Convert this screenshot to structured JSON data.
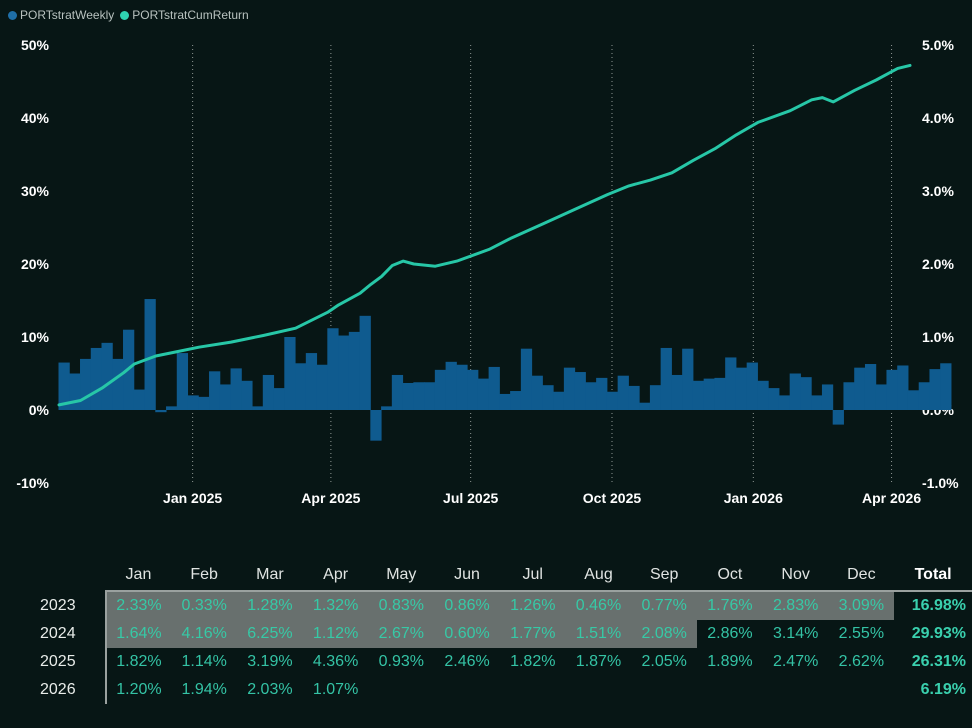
{
  "legend": {
    "weekly_label": "PORTstratWeekly",
    "cum_label": "PORTstratCumReturn"
  },
  "colors": {
    "background": "#071615",
    "weekly": "#0f5b8f",
    "cum": "#27c7a7",
    "legend_weekly_dot": "#1f6fa8",
    "legend_cum_dot": "#2fd3b1",
    "highlight": "#68706e",
    "table_text": "#34c3a5"
  },
  "chart_data": {
    "type": "bar+line",
    "x_ticks": [
      "Jan 2025",
      "Apr 2025",
      "Jul 2025",
      "Oct 2025",
      "Jan 2026",
      "Apr 2026"
    ],
    "x_tick_dates": [
      "2025-01-01",
      "2025-04-01",
      "2025-07-01",
      "2025-10-01",
      "2026-01-01",
      "2026-04-01"
    ],
    "x_range": [
      "2024-10-06",
      "2026-04-13"
    ],
    "grid": "dotted vertical at month ticks",
    "left_axis": {
      "ticks": [
        "50%",
        "40%",
        "30%",
        "20%",
        "10%",
        "0%",
        "-10%"
      ],
      "values": [
        50,
        40,
        30,
        20,
        10,
        0,
        -10
      ],
      "ylim": [
        -10,
        50
      ]
    },
    "right_axis": {
      "ticks": [
        "5.0%",
        "4.0%",
        "3.0%",
        "2.0%",
        "1.0%",
        "0.0%",
        "-1.0%"
      ],
      "values": [
        5.0,
        4.0,
        3.0,
        2.0,
        1.0,
        0.0,
        -1.0
      ],
      "ylim": [
        -1.0,
        5.0
      ]
    },
    "series": [
      {
        "name": "PORTstratWeekly",
        "type": "bar",
        "axis": "right",
        "start_date": "2024-10-06",
        "step_days": 7,
        "values": [
          0.65,
          0.5,
          0.7,
          0.85,
          0.92,
          0.7,
          1.1,
          0.28,
          1.52,
          -0.03,
          0.05,
          0.78,
          0.2,
          0.18,
          0.53,
          0.35,
          0.57,
          0.4,
          0.05,
          0.48,
          0.3,
          1.0,
          0.64,
          0.78,
          0.62,
          1.12,
          1.02,
          1.07,
          1.29,
          -0.42,
          0.05,
          0.48,
          0.37,
          0.38,
          0.38,
          0.55,
          0.66,
          0.62,
          0.55,
          0.43,
          0.59,
          0.22,
          0.26,
          0.84,
          0.47,
          0.34,
          0.25,
          0.58,
          0.52,
          0.38,
          0.44,
          0.25,
          0.47,
          0.33,
          0.1,
          0.34,
          0.85,
          0.48,
          0.84,
          0.4,
          0.43,
          0.44,
          0.72,
          0.58,
          0.65,
          0.4,
          0.3,
          0.2,
          0.5,
          0.45,
          0.2,
          0.35,
          -0.2,
          0.38,
          0.58,
          0.63,
          0.35,
          0.55,
          0.61,
          0.27,
          0.38,
          0.56,
          0.64
        ]
      },
      {
        "name": "PORTstratCumReturn",
        "type": "line",
        "axis": "left",
        "points": [
          [
            "2024-10-06",
            0.7
          ],
          [
            "2024-10-20",
            1.3
          ],
          [
            "2024-11-03",
            3.0
          ],
          [
            "2024-11-17",
            5.1
          ],
          [
            "2024-11-24",
            6.3
          ],
          [
            "2024-12-08",
            7.4
          ],
          [
            "2024-12-22",
            8.0
          ],
          [
            "2025-01-05",
            8.6
          ],
          [
            "2025-01-26",
            9.3
          ],
          [
            "2025-02-16",
            10.2
          ],
          [
            "2025-03-09",
            11.2
          ],
          [
            "2025-03-30",
            13.4
          ],
          [
            "2025-04-06",
            14.4
          ],
          [
            "2025-04-20",
            16.0
          ],
          [
            "2025-04-27",
            17.2
          ],
          [
            "2025-05-04",
            18.3
          ],
          [
            "2025-05-11",
            19.8
          ],
          [
            "2025-05-18",
            20.4
          ],
          [
            "2025-05-25",
            20.0
          ],
          [
            "2025-06-08",
            19.7
          ],
          [
            "2025-06-22",
            20.4
          ],
          [
            "2025-07-13",
            22.0
          ],
          [
            "2025-07-27",
            23.5
          ],
          [
            "2025-08-17",
            25.5
          ],
          [
            "2025-09-07",
            27.5
          ],
          [
            "2025-09-28",
            29.5
          ],
          [
            "2025-10-12",
            30.7
          ],
          [
            "2025-10-26",
            31.5
          ],
          [
            "2025-11-09",
            32.5
          ],
          [
            "2025-11-23",
            34.2
          ],
          [
            "2025-12-07",
            35.8
          ],
          [
            "2025-12-21",
            37.7
          ],
          [
            "2026-01-04",
            39.4
          ],
          [
            "2026-01-25",
            41.0
          ],
          [
            "2026-02-08",
            42.5
          ],
          [
            "2026-02-15",
            42.8
          ],
          [
            "2026-02-22",
            42.2
          ],
          [
            "2026-03-08",
            43.8
          ],
          [
            "2026-03-22",
            45.2
          ],
          [
            "2026-04-05",
            46.8
          ],
          [
            "2026-04-13",
            47.2
          ]
        ]
      }
    ]
  },
  "table": {
    "headers": [
      "Jan",
      "Feb",
      "Mar",
      "Apr",
      "May",
      "Jun",
      "Jul",
      "Aug",
      "Sep",
      "Oct",
      "Nov",
      "Dec"
    ],
    "total_header": "Total",
    "rows": [
      {
        "year": "2023",
        "months": [
          "2.33%",
          "0.33%",
          "1.28%",
          "1.32%",
          "0.83%",
          "0.86%",
          "1.26%",
          "0.46%",
          "0.77%",
          "1.76%",
          "2.83%",
          "3.09%"
        ],
        "total": "16.98%",
        "highlight_count": 12
      },
      {
        "year": "2024",
        "months": [
          "1.64%",
          "4.16%",
          "6.25%",
          "1.12%",
          "2.67%",
          "0.60%",
          "1.77%",
          "1.51%",
          "2.08%",
          "2.86%",
          "3.14%",
          "2.55%"
        ],
        "total": "29.93%",
        "highlight_count": 9
      },
      {
        "year": "2025",
        "months": [
          "1.82%",
          "1.14%",
          "3.19%",
          "4.36%",
          "0.93%",
          "2.46%",
          "1.82%",
          "1.87%",
          "2.05%",
          "1.89%",
          "2.47%",
          "2.62%"
        ],
        "total": "26.31%",
        "highlight_count": 0
      },
      {
        "year": "2026",
        "months": [
          "1.20%",
          "1.94%",
          "2.03%",
          "1.07%",
          "",
          "",
          "",
          "",
          "",
          "",
          "",
          ""
        ],
        "total": "6.19%",
        "highlight_count": 0
      }
    ]
  }
}
